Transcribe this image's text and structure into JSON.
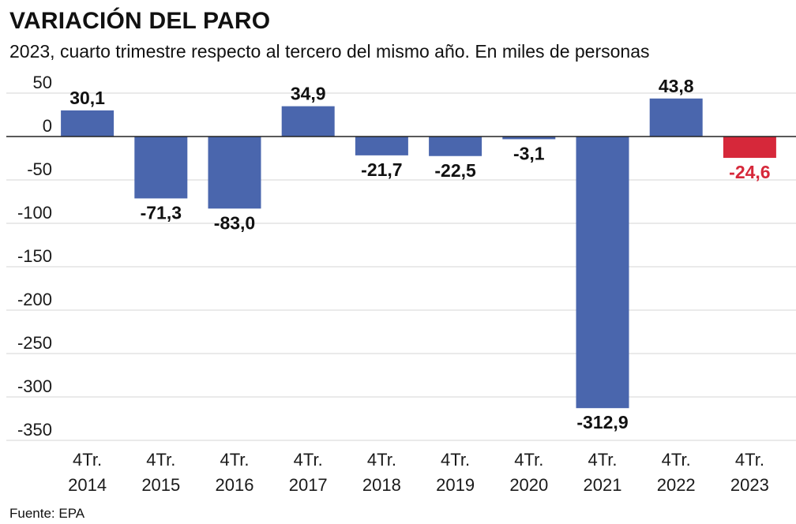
{
  "header": {
    "title": "VARIACIÓN DEL PARO",
    "subtitle": "2023, cuarto trimestre respecto al tercero del mismo año. En miles de personas"
  },
  "footer": {
    "source": "Fuente: EPA"
  },
  "colors": {
    "bar": "#4a66ad",
    "highlight": "#d6283a",
    "grid": "#d4d4d4",
    "axis": "#222222"
  },
  "chart_data": {
    "type": "bar",
    "categories": [
      [
        "4Tr.",
        "2014"
      ],
      [
        "4Tr.",
        "2015"
      ],
      [
        "4Tr.",
        "2016"
      ],
      [
        "4Tr.",
        "2017"
      ],
      [
        "4Tr.",
        "2018"
      ],
      [
        "4Tr.",
        "2019"
      ],
      [
        "4Tr.",
        "2020"
      ],
      [
        "4Tr.",
        "2021"
      ],
      [
        "4Tr.",
        "2022"
      ],
      [
        "4Tr.",
        "2023"
      ]
    ],
    "values": [
      30.1,
      -71.3,
      -83.0,
      34.9,
      -21.7,
      -22.5,
      -3.1,
      -312.9,
      43.8,
      -24.6
    ],
    "data_labels": [
      "30,1",
      "-71,3",
      "-83,0",
      "34,9",
      "-21,7",
      "-22,5",
      "-3,1",
      "-312,9",
      "43,8",
      "-24,6"
    ],
    "highlight_index": 9,
    "ylim": [
      -350,
      50
    ],
    "yticks": [
      50,
      0,
      -50,
      -100,
      -150,
      -200,
      -250,
      -300,
      -350
    ],
    "ytick_labels": [
      "50",
      "0",
      "-50",
      "-100",
      "-150",
      "-200",
      "-250",
      "-300",
      "-350"
    ],
    "grid": true,
    "legend": "none"
  }
}
